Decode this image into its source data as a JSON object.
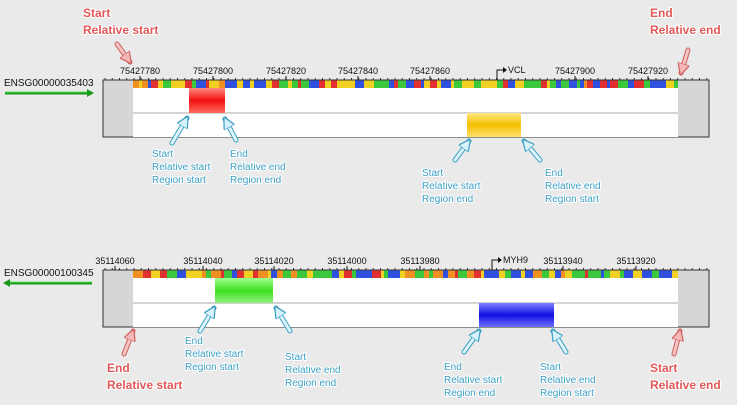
{
  "tracks": [
    {
      "gene_id": "ENSG00000035403",
      "gene_name": "VCL",
      "ruler_ticks": [
        75427780,
        75427800,
        75427820,
        75427840,
        75427860,
        75427900,
        75427920
      ],
      "edge_callouts": [
        {
          "lines": [
            "Start",
            "Relative start"
          ]
        },
        {
          "lines": [
            "End",
            "Relative end"
          ]
        }
      ],
      "region_callouts": [
        {
          "lines": [
            "Start",
            "Relative start",
            "Region start"
          ]
        },
        {
          "lines": [
            "End",
            "Relative end",
            "Region end"
          ]
        },
        {
          "lines": [
            "Start",
            "Relative start",
            "Region end"
          ]
        },
        {
          "lines": [
            "End",
            "Relative end",
            "Region start"
          ]
        }
      ]
    },
    {
      "gene_id": "ENSG00000100345",
      "gene_name": "MYH9",
      "ruler_ticks": [
        35114060,
        35114040,
        35114020,
        35114000,
        35113980,
        35113940,
        35113920
      ],
      "edge_callouts": [
        {
          "lines": [
            "End",
            "Relative start"
          ]
        },
        {
          "lines": [
            "Start",
            "Relative end"
          ]
        }
      ],
      "region_callouts": [
        {
          "lines": [
            "End",
            "Relative start",
            "Region start"
          ]
        },
        {
          "lines": [
            "Start",
            "Relative end",
            "Region end"
          ]
        },
        {
          "lines": [
            "End",
            "Relative start",
            "Region end"
          ]
        },
        {
          "lines": [
            "Start",
            "Relative end",
            "Region start"
          ]
        }
      ]
    }
  ]
}
